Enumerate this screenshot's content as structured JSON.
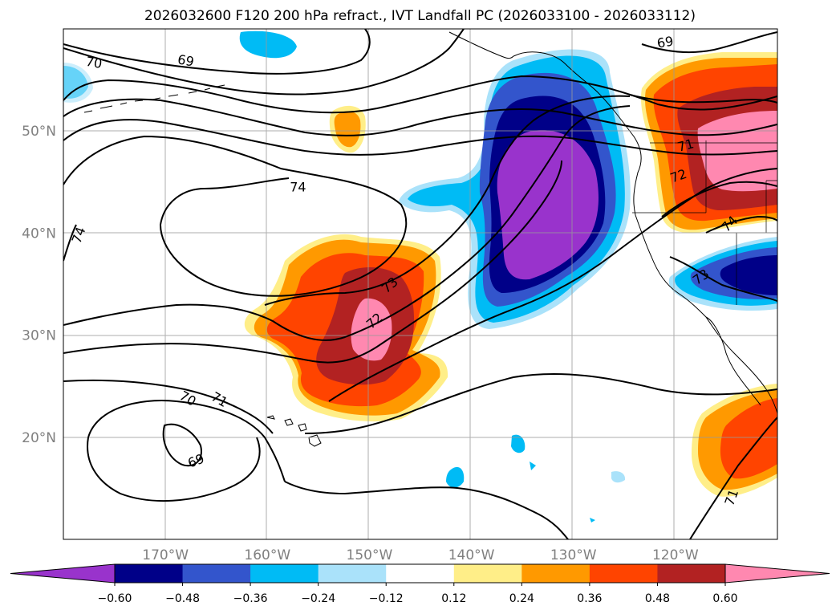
{
  "title": "2026032600 F120 200 hPa refract., IVT Landfall PC (2026033100 - 2026033112)",
  "map": {
    "lon_range": [
      -180,
      -110
    ],
    "lat_range": [
      10,
      60
    ],
    "lon_ticks": [
      {
        "lon": -170,
        "label": "170°W"
      },
      {
        "lon": -160,
        "label": "160°W"
      },
      {
        "lon": -150,
        "label": "150°W"
      },
      {
        "lon": -140,
        "label": "140°W"
      },
      {
        "lon": -130,
        "label": "130°W"
      },
      {
        "lon": -120,
        "label": "120°W"
      }
    ],
    "lat_ticks": [
      {
        "lat": 50,
        "label": "50°N"
      },
      {
        "lat": 40,
        "label": "40°N"
      },
      {
        "lat": 30,
        "label": "30°N"
      },
      {
        "lat": 20,
        "label": "20°N"
      }
    ],
    "grid": true
  },
  "colorbar": {
    "colors": [
      "#9933cc",
      "#000088",
      "#3355cc",
      "#00bbf5",
      "#aae2fa",
      "#ffffff",
      "#ffee88",
      "#ff9900",
      "#ff4400",
      "#b22222",
      "#ff88b0"
    ],
    "labels": [
      "−0.60",
      "−0.48",
      "−0.36",
      "−0.24",
      "−0.12",
      "0.12",
      "0.24",
      "0.36",
      "0.48",
      "0.60"
    ],
    "extend": "both"
  },
  "shading_colors": {
    "n1": "#aae2fa",
    "n2": "#00bbf5",
    "n3": "#3355cc",
    "n4": "#000088",
    "n5": "#9933cc",
    "p1": "#ffee88",
    "p2": "#ff9900",
    "p3": "#ff4400",
    "p4": "#b22222",
    "p5": "#ff88b0"
  },
  "contour_labels": [
    {
      "text": "70",
      "lon": -177.0,
      "lat": 56.7,
      "rot": 10
    },
    {
      "text": "69",
      "lon": -168.0,
      "lat": 56.9,
      "rot": 10
    },
    {
      "text": "74",
      "lon": -157.0,
      "lat": 44.5,
      "rot": 0
    },
    {
      "text": "74",
      "lon": -178.5,
      "lat": 39.8,
      "rot": -70
    },
    {
      "text": "73",
      "lon": -148.0,
      "lat": 34.9,
      "rot": -40
    },
    {
      "text": "72",
      "lon": -149.5,
      "lat": 31.4,
      "rot": -40
    },
    {
      "text": "70",
      "lon": -167.8,
      "lat": 23.8,
      "rot": 30
    },
    {
      "text": "71",
      "lon": -164.7,
      "lat": 23.7,
      "rot": 30
    },
    {
      "text": "69",
      "lon": -167.0,
      "lat": 17.7,
      "rot": -20
    },
    {
      "text": "69",
      "lon": -121.0,
      "lat": 58.7,
      "rot": -10
    },
    {
      "text": "71",
      "lon": -119.0,
      "lat": 48.6,
      "rot": -15
    },
    {
      "text": "72",
      "lon": -119.7,
      "lat": 45.6,
      "rot": -20
    },
    {
      "text": "74",
      "lon": -114.7,
      "lat": 40.9,
      "rot": -45
    },
    {
      "text": "73",
      "lon": -117.5,
      "lat": 35.7,
      "rot": -35
    },
    {
      "text": "71",
      "lon": -114.5,
      "lat": 14.1,
      "rot": -70
    }
  ]
}
